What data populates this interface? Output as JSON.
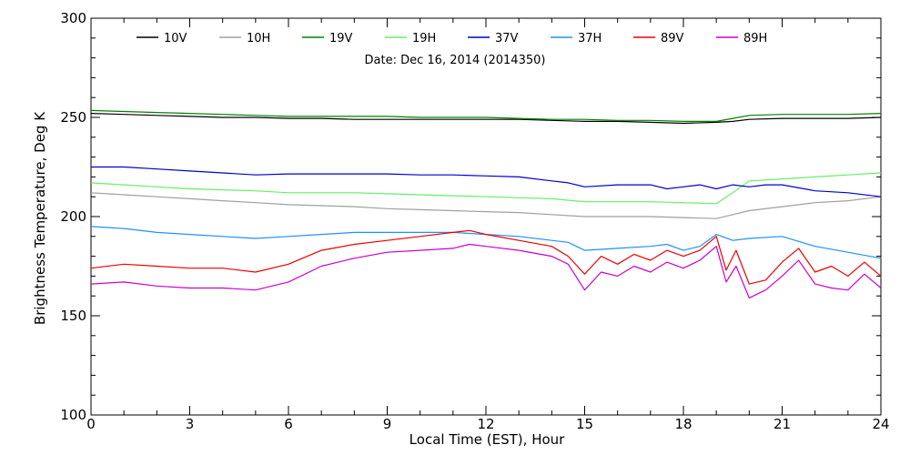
{
  "chart_data": {
    "type": "line",
    "subtitle": "Date: Dec 16, 2014 (2014350)",
    "xlabel": "Local Time (EST), Hour",
    "ylabel": "Brightness Temperature, Deg K",
    "xlim": [
      0,
      24
    ],
    "ylim": [
      100,
      300
    ],
    "xticks": [
      0,
      3,
      6,
      9,
      12,
      15,
      18,
      21,
      24
    ],
    "yticks": [
      100,
      150,
      200,
      250,
      300
    ],
    "grid": false,
    "legend_position": "top",
    "series": [
      {
        "name": "10V",
        "color": "#000000",
        "x": [
          0,
          1,
          2,
          3,
          4,
          5,
          6,
          7,
          8,
          9,
          10,
          11,
          12,
          13,
          14,
          15,
          16,
          17,
          18,
          19,
          19.5,
          20,
          21,
          22,
          23,
          24
        ],
        "y": [
          252,
          251.5,
          251,
          250.5,
          250,
          250,
          249.5,
          249.5,
          249,
          249,
          249,
          249,
          249,
          249,
          248.5,
          248,
          248,
          247.5,
          247,
          247.5,
          248,
          249,
          249.5,
          249.5,
          249.5,
          250
        ]
      },
      {
        "name": "10H",
        "color": "#a0a0a0",
        "x": [
          0,
          1,
          2,
          3,
          4,
          5,
          6,
          7,
          8,
          9,
          10,
          11,
          12,
          13,
          14,
          15,
          16,
          17,
          18,
          19,
          19.5,
          20,
          21,
          22,
          23,
          24
        ],
        "y": [
          212,
          211,
          210,
          209,
          208,
          207,
          206,
          205.5,
          205,
          204,
          203.5,
          203,
          202.5,
          202,
          201,
          200,
          200,
          200,
          199.5,
          199,
          201,
          203,
          205,
          207,
          208,
          210
        ]
      },
      {
        "name": "19V",
        "color": "#008000",
        "x": [
          0,
          1,
          2,
          3,
          4,
          5,
          6,
          7,
          8,
          9,
          10,
          11,
          12,
          13,
          14,
          15,
          16,
          17,
          18,
          19,
          19.5,
          20,
          21,
          22,
          23,
          24
        ],
        "y": [
          253.5,
          253,
          252.5,
          252,
          251.5,
          251,
          250.5,
          250.5,
          250.5,
          250.5,
          250,
          250,
          250,
          249.5,
          249,
          249,
          248.5,
          248.5,
          248,
          248,
          249.5,
          251,
          251.5,
          251.5,
          251.5,
          252
        ]
      },
      {
        "name": "19H",
        "color": "#66ee66",
        "x": [
          0,
          1,
          2,
          3,
          4,
          5,
          6,
          7,
          8,
          9,
          10,
          11,
          12,
          13,
          14,
          15,
          16,
          17,
          18,
          19,
          19.5,
          20,
          21,
          22,
          23,
          24
        ],
        "y": [
          217,
          216,
          215,
          214,
          213.5,
          213,
          212,
          212,
          212,
          211.5,
          211,
          210.5,
          210,
          209.5,
          209,
          207.5,
          207.5,
          207.5,
          207,
          206.5,
          212,
          218,
          219,
          220,
          221,
          222
        ]
      },
      {
        "name": "37V",
        "color": "#0000cc",
        "x": [
          0,
          1,
          2,
          3,
          4,
          5,
          6,
          7,
          8,
          9,
          10,
          11,
          12,
          13,
          14,
          14.5,
          15,
          16,
          17,
          17.5,
          18,
          18.5,
          19,
          19.5,
          20,
          20.5,
          21,
          22,
          23,
          24
        ],
        "y": [
          225,
          225,
          224,
          223,
          222,
          221,
          221.5,
          221.5,
          221.5,
          221.5,
          221,
          221,
          220.5,
          220,
          218,
          217,
          215,
          216,
          216,
          214,
          215,
          216,
          214,
          216,
          215,
          216,
          216,
          213,
          212,
          210
        ]
      },
      {
        "name": "37H",
        "color": "#1e90ff",
        "x": [
          0,
          1,
          2,
          3,
          4,
          5,
          6,
          7,
          8,
          9,
          10,
          11,
          12,
          13,
          14,
          14.5,
          15,
          16,
          17,
          17.5,
          18,
          18.5,
          19,
          19.5,
          20,
          21,
          22,
          23,
          24
        ],
        "y": [
          195,
          194,
          192,
          191,
          190,
          189,
          190,
          191,
          192,
          192,
          192,
          192,
          191,
          190,
          188,
          187,
          183,
          184,
          185,
          186,
          183,
          185,
          191,
          188,
          189,
          190,
          185,
          182,
          179
        ]
      },
      {
        "name": "89V",
        "color": "#ee0000",
        "x": [
          0,
          1,
          2,
          3,
          4,
          5,
          6,
          7,
          8,
          9,
          10,
          11,
          11.5,
          12,
          13,
          14,
          14.5,
          15,
          15.5,
          16,
          16.5,
          17,
          17.5,
          18,
          18.5,
          19,
          19.3,
          19.6,
          20,
          20.5,
          21,
          21.5,
          22,
          22.5,
          23,
          23.5,
          24
        ],
        "y": [
          174,
          176,
          175,
          174,
          174,
          172,
          176,
          183,
          186,
          188,
          190,
          192,
          193,
          191,
          188,
          185,
          180,
          171,
          180,
          176,
          181,
          178,
          183,
          180,
          183,
          190,
          173,
          183,
          166,
          168,
          177,
          184,
          172,
          175,
          170,
          177,
          170
        ]
      },
      {
        "name": "89H",
        "color": "#cc00cc",
        "x": [
          0,
          1,
          2,
          3,
          4,
          5,
          6,
          7,
          8,
          9,
          10,
          11,
          11.5,
          12,
          13,
          14,
          14.5,
          15,
          15.5,
          16,
          16.5,
          17,
          17.5,
          18,
          18.5,
          19,
          19.3,
          19.6,
          20,
          20.5,
          21,
          21.5,
          22,
          22.5,
          23,
          23.5,
          24
        ],
        "y": [
          166,
          167,
          165,
          164,
          164,
          163,
          167,
          175,
          179,
          182,
          183,
          184,
          186,
          185,
          183,
          180,
          176,
          163,
          172,
          170,
          175,
          172,
          177,
          174,
          178,
          185,
          167,
          175,
          159,
          163,
          170,
          178,
          166,
          164,
          163,
          171,
          164
        ]
      }
    ]
  }
}
